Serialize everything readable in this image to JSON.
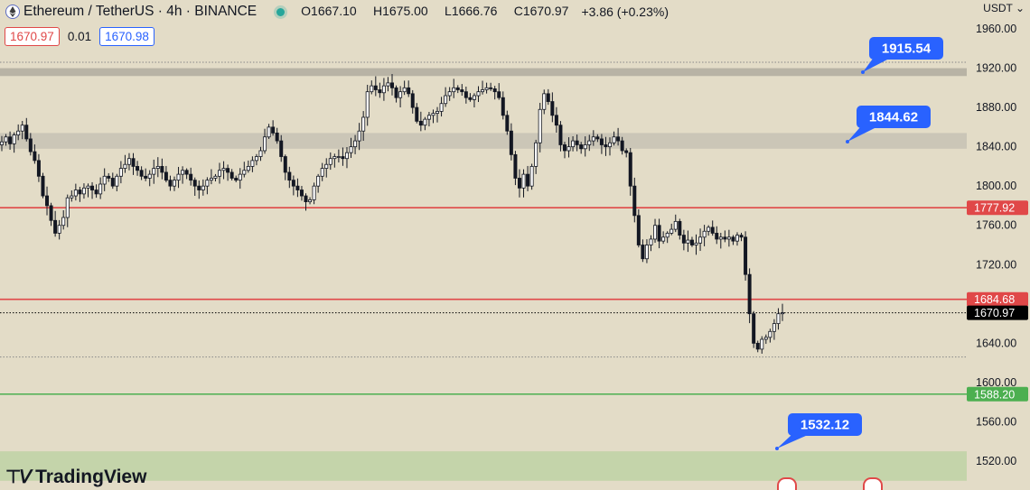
{
  "header": {
    "symbol": "Ethereum / TetherUS · 4h · BINANCE",
    "open_label": "O",
    "open": "1667.10",
    "high_label": "H",
    "high": "1675.00",
    "low_label": "L",
    "low": "1666.76",
    "close_label": "C",
    "close": "1670.97",
    "change": "+3.86 (+0.23%)"
  },
  "quote": {
    "sell": "1670.97",
    "spread": "0.01",
    "buy": "1670.98"
  },
  "currency": "USDT",
  "logo_text": "TradingView",
  "colors": {
    "background": "#e3dcc7",
    "up": "#131722",
    "down": "#131722",
    "resistance": "#e04848",
    "support": "#4caf50",
    "zone": "#c9c4b6",
    "target_zone": "#c2d3a9",
    "callout": "#2962ff",
    "last_price_tag": "#000000"
  },
  "chart_data": {
    "type": "candlestick",
    "y_axis": {
      "ylim": [
        1500,
        1970
      ],
      "ticks": [
        1960,
        1920,
        1880,
        1840,
        1800,
        1760,
        1720,
        1680,
        1640,
        1600,
        1560,
        1520
      ],
      "tick_labels": [
        "1960.00",
        "1920.00",
        "1880.00",
        "1840.00",
        "1800.00",
        "1760.00",
        "1720.00",
        "1680.00",
        "1640.00",
        "1600.00",
        "1560.00",
        "1520.00"
      ]
    },
    "horizontal_lines": [
      {
        "value": 1777.92,
        "label": "1777.92",
        "color": "#e04848",
        "style": "solid"
      },
      {
        "value": 1684.68,
        "label": "1684.68",
        "color": "#e04848",
        "style": "solid"
      },
      {
        "value": 1588.2,
        "label": "1588.20",
        "color": "#4caf50",
        "style": "solid"
      },
      {
        "value": 1670.97,
        "label": "1670.97",
        "color": "#000000",
        "style": "dotted"
      },
      {
        "value": 1926,
        "label": "",
        "color": "#888888",
        "style": "dotted"
      },
      {
        "value": 1626,
        "label": "",
        "color": "#888888",
        "style": "dotted"
      }
    ],
    "zones": [
      {
        "from": 1912,
        "to": 1920,
        "color": "#b5b0a3"
      },
      {
        "from": 1838,
        "to": 1854,
        "color": "#c9c4b6"
      },
      {
        "from": 1500,
        "to": 1530,
        "color": "#c2d3a9"
      }
    ],
    "callouts": [
      {
        "label": "1915.54",
        "value": 1915.54
      },
      {
        "label": "1844.62",
        "value": 1844.62
      },
      {
        "label": "1532.12",
        "value": 1532.12
      }
    ],
    "closes": [
      1845,
      1850,
      1843,
      1852,
      1856,
      1862,
      1848,
      1835,
      1826,
      1810,
      1790,
      1780,
      1765,
      1752,
      1760,
      1768,
      1788,
      1790,
      1796,
      1792,
      1798,
      1800,
      1796,
      1792,
      1802,
      1810,
      1808,
      1800,
      1810,
      1818,
      1822,
      1828,
      1820,
      1816,
      1810,
      1808,
      1812,
      1818,
      1820,
      1814,
      1806,
      1800,
      1806,
      1812,
      1816,
      1812,
      1806,
      1800,
      1796,
      1800,
      1806,
      1808,
      1810,
      1816,
      1818,
      1814,
      1808,
      1806,
      1812,
      1816,
      1820,
      1826,
      1830,
      1836,
      1850,
      1860,
      1854,
      1846,
      1830,
      1814,
      1806,
      1800,
      1796,
      1790,
      1784,
      1786,
      1800,
      1810,
      1818,
      1822,
      1828,
      1830,
      1830,
      1828,
      1834,
      1840,
      1846,
      1856,
      1870,
      1896,
      1902,
      1898,
      1895,
      1902,
      1905,
      1900,
      1890,
      1896,
      1900,
      1894,
      1880,
      1866,
      1862,
      1868,
      1872,
      1874,
      1876,
      1884,
      1892,
      1896,
      1900,
      1898,
      1896,
      1890,
      1888,
      1892,
      1896,
      1898,
      1900,
      1899,
      1896,
      1890,
      1872,
      1856,
      1832,
      1808,
      1798,
      1812,
      1800,
      1820,
      1844,
      1878,
      1894,
      1886,
      1872,
      1862,
      1842,
      1836,
      1840,
      1846,
      1842,
      1838,
      1842,
      1846,
      1850,
      1848,
      1842,
      1840,
      1844,
      1850,
      1846,
      1836,
      1834,
      1800,
      1770,
      1740,
      1726,
      1740,
      1746,
      1760,
      1744,
      1748,
      1752,
      1756,
      1764,
      1750,
      1742,
      1745,
      1740,
      1742,
      1748,
      1754,
      1758,
      1752,
      1746,
      1748,
      1746,
      1748,
      1744,
      1750,
      1748,
      1710,
      1670,
      1640,
      1634,
      1644,
      1646,
      1652,
      1660,
      1670,
      1671
    ]
  }
}
